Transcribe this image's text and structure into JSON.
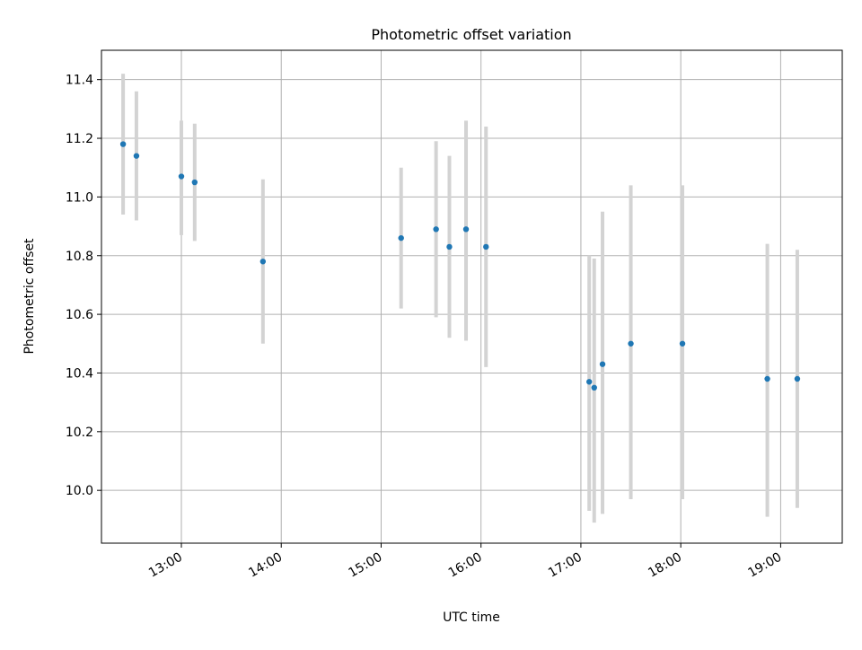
{
  "chart_data": {
    "type": "scatter",
    "title": "Photometric offset variation",
    "xlabel": "UTC time",
    "ylabel": "Photometric offset",
    "xlim": [
      "12:12",
      "19:37"
    ],
    "ylim": [
      9.82,
      11.5
    ],
    "x_ticks": [
      "13:00",
      "14:00",
      "15:00",
      "16:00",
      "17:00",
      "18:00",
      "19:00"
    ],
    "y_ticks": [
      10.0,
      10.2,
      10.4,
      10.6,
      10.8,
      11.0,
      11.2,
      11.4
    ],
    "y_tick_labels": [
      "10.0",
      "10.2",
      "10.4",
      "10.6",
      "10.8",
      "11.0",
      "11.2",
      "11.4"
    ],
    "grid": true,
    "marker_color": "#1f77b4",
    "errorbar_color": "#d3d3d3",
    "points": [
      {
        "x": "12:25",
        "y": 11.18,
        "ylow": 10.94,
        "yhigh": 11.42
      },
      {
        "x": "12:33",
        "y": 11.14,
        "ylow": 10.92,
        "yhigh": 11.36
      },
      {
        "x": "13:00",
        "y": 11.07,
        "ylow": 10.87,
        "yhigh": 11.26
      },
      {
        "x": "13:08",
        "y": 11.05,
        "ylow": 10.85,
        "yhigh": 11.25
      },
      {
        "x": "13:49",
        "y": 10.78,
        "ylow": 10.5,
        "yhigh": 11.06
      },
      {
        "x": "15:12",
        "y": 10.86,
        "ylow": 10.62,
        "yhigh": 11.1
      },
      {
        "x": "15:33",
        "y": 10.89,
        "ylow": 10.59,
        "yhigh": 11.19
      },
      {
        "x": "15:41",
        "y": 10.83,
        "ylow": 10.52,
        "yhigh": 11.14
      },
      {
        "x": "15:51",
        "y": 10.89,
        "ylow": 10.51,
        "yhigh": 11.26
      },
      {
        "x": "16:03",
        "y": 10.83,
        "ylow": 10.42,
        "yhigh": 11.24
      },
      {
        "x": "17:05",
        "y": 10.37,
        "ylow": 9.93,
        "yhigh": 10.8
      },
      {
        "x": "17:08",
        "y": 10.35,
        "ylow": 9.89,
        "yhigh": 10.79
      },
      {
        "x": "17:13",
        "y": 10.43,
        "ylow": 9.92,
        "yhigh": 10.95
      },
      {
        "x": "17:30",
        "y": 10.5,
        "ylow": 9.97,
        "yhigh": 11.04
      },
      {
        "x": "18:01",
        "y": 10.5,
        "ylow": 9.97,
        "yhigh": 11.04
      },
      {
        "x": "18:52",
        "y": 10.38,
        "ylow": 9.91,
        "yhigh": 10.84
      },
      {
        "x": "19:10",
        "y": 10.38,
        "ylow": 9.94,
        "yhigh": 10.82
      }
    ]
  }
}
